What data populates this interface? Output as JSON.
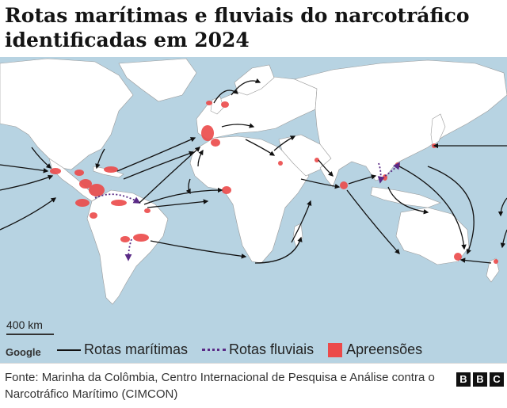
{
  "title": "Rotas marítimas e fluviais do narcotráfico identificadas em 2024",
  "map": {
    "scale_label": "400 km",
    "attribution": "Google",
    "colors": {
      "ocean": "#b7d3e2",
      "land": "#ffffff",
      "border": "#8e8e8e",
      "seizure": "#ec4a4a",
      "maritime_route": "#111111",
      "river_route": "#5a2a86"
    }
  },
  "legend": {
    "maritime_routes": "Rotas marítimas",
    "river_routes": "Rotas fluviais",
    "seizures": "Apreensões"
  },
  "source": "Fonte: Marinha da Colômbia, Centro Internacional de Pesquisa e Análise contra o Narcotráfico Marítimo (CIMCON)",
  "logo": {
    "letters": [
      "B",
      "B",
      "C"
    ]
  }
}
